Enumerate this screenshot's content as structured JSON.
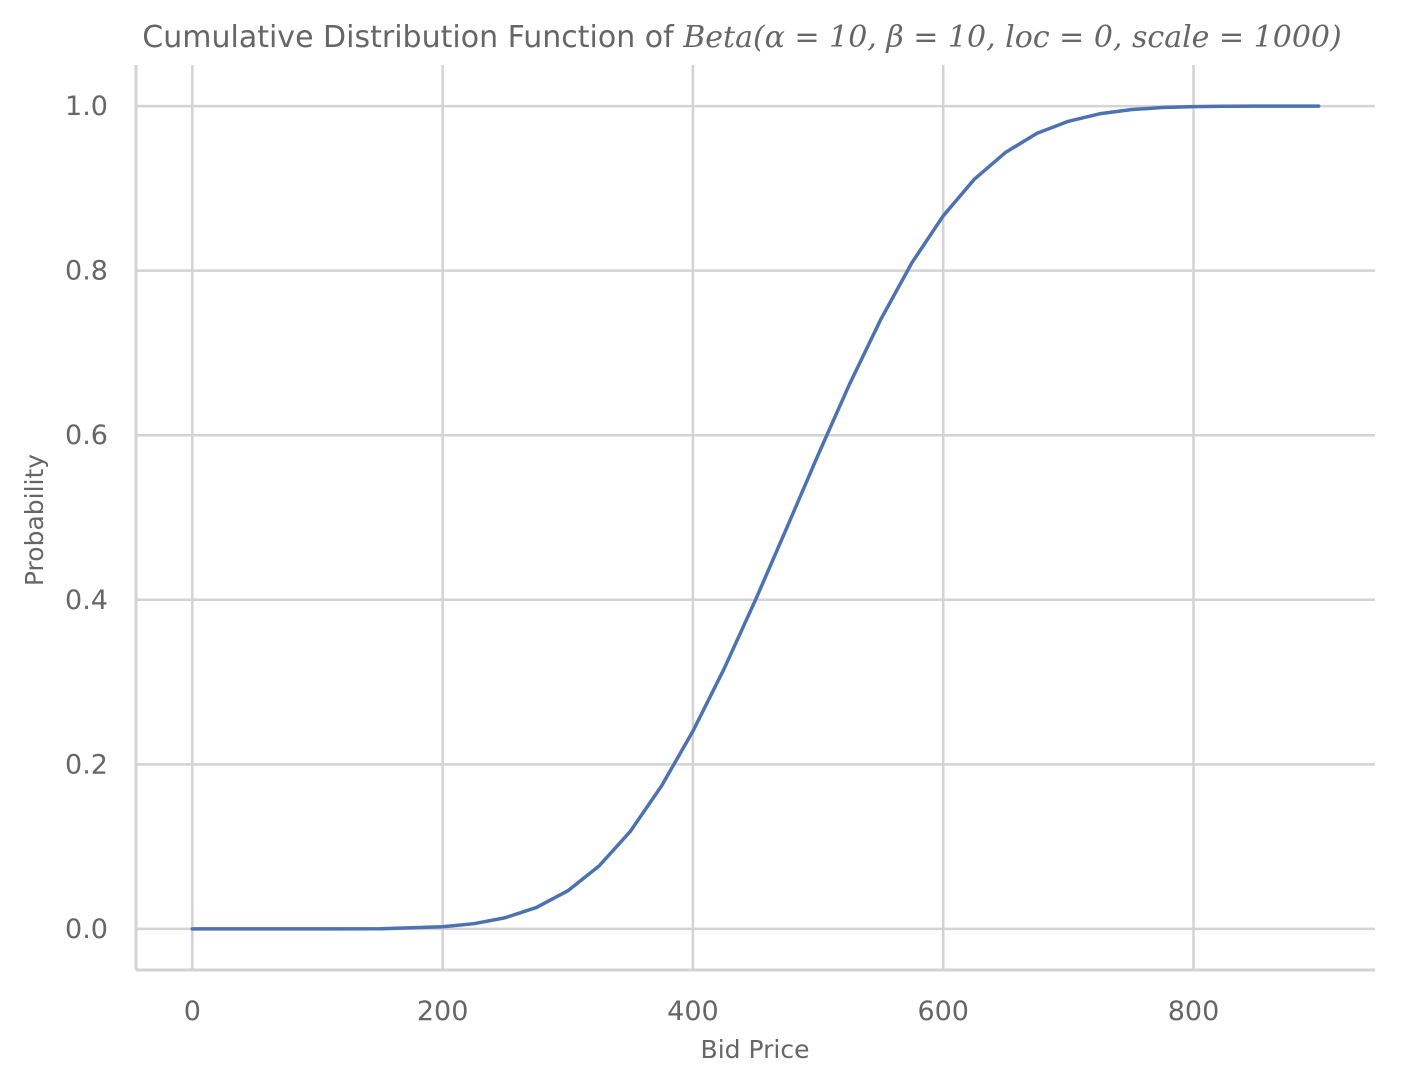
{
  "chart_data": {
    "type": "line",
    "title_prefix": "Cumulative Distribution Function of ",
    "title_math": "Beta(α = 10, β = 10, loc = 0, scale = 1000)",
    "xlabel": "Bid Price",
    "ylabel": "Probability",
    "xlim": [
      -45,
      945
    ],
    "ylim": [
      -0.05,
      1.05
    ],
    "x_ticks": [
      0,
      200,
      400,
      600,
      800
    ],
    "x_tick_labels": [
      "0",
      "200",
      "400",
      "600",
      "800"
    ],
    "y_ticks": [
      0.0,
      0.2,
      0.4,
      0.6,
      0.8,
      1.0
    ],
    "y_tick_labels": [
      "0.0",
      "0.2",
      "0.4",
      "0.6",
      "0.8",
      "1.0"
    ],
    "grid": true,
    "series": [
      {
        "color": "#4c72b0",
        "x": [
          0,
          50,
          100,
          150,
          200,
          225,
          250,
          275,
          300,
          325,
          350,
          375,
          400,
          425,
          450,
          475,
          500,
          525,
          550,
          575,
          600,
          625,
          650,
          675,
          700,
          725,
          750,
          775,
          800,
          825,
          850,
          875,
          900
        ],
        "y": [
          0.0,
          0.0,
          0.0,
          0.0001,
          0.0026,
          0.0063,
          0.0135,
          0.026,
          0.0462,
          0.0764,
          0.1186,
          0.1739,
          0.2403,
          0.3164,
          0.3998,
          0.4875,
          0.5761,
          0.6616,
          0.7405,
          0.8097,
          0.8667,
          0.9114,
          0.944,
          0.967,
          0.9816,
          0.9907,
          0.9957,
          0.9983,
          0.9994,
          0.9998,
          1.0,
          1.0,
          1.0
        ]
      }
    ]
  }
}
